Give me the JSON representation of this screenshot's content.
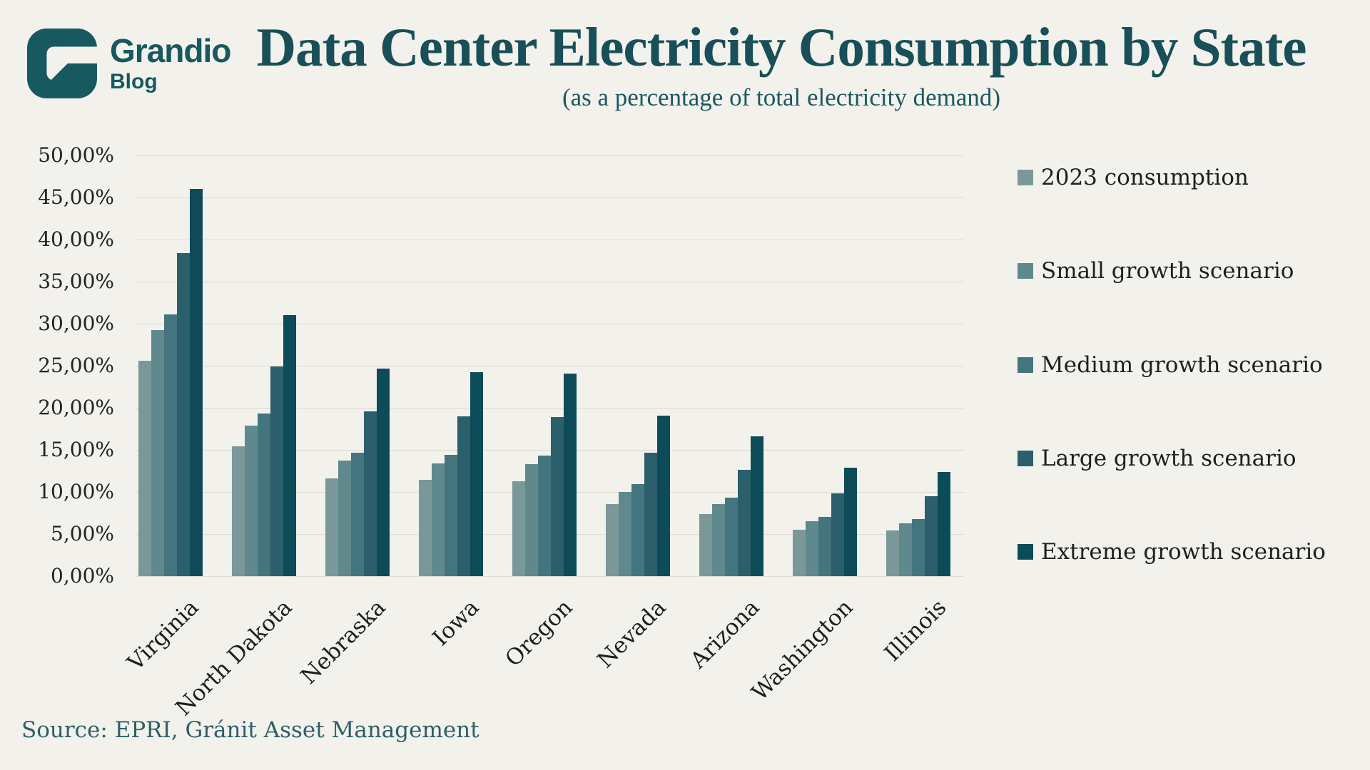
{
  "logo": {
    "name": "Grandio",
    "sub": "Blog",
    "color": "#16595f"
  },
  "header": {
    "title": "Data Center Electricity Consumption by State",
    "subtitle": "(as a percentage of total electricity demand)"
  },
  "source": {
    "text": "Source: EPRI, Gránit Asset Management"
  },
  "colors": {
    "background": "#f2f1ec",
    "gridline": "#dbdad3",
    "title_teal": "#184f58",
    "axis_text": "#222222"
  },
  "chart_data": {
    "type": "bar",
    "title": "Data Center Electricity Consumption by State",
    "subtitle": "(as a percentage of total electricity demand)",
    "categories": [
      "Virginia",
      "North Dakota",
      "Nebraska",
      "Iowa",
      "Oregon",
      "Nevada",
      "Arizona",
      "Washington",
      "Illinois"
    ],
    "series": [
      {
        "name": "2023 consumption",
        "color": "#7b9899",
        "values": [
          25.6,
          15.4,
          11.6,
          11.4,
          11.3,
          8.6,
          7.4,
          5.5,
          5.4
        ]
      },
      {
        "name": "Small growth scenario",
        "color": "#5f898c",
        "values": [
          29.2,
          17.9,
          13.7,
          13.4,
          13.3,
          10.0,
          8.6,
          6.5,
          6.3
        ]
      },
      {
        "name": "Medium growth scenario",
        "color": "#44757f",
        "values": [
          31.1,
          19.3,
          14.7,
          14.4,
          14.3,
          10.9,
          9.3,
          7.0,
          6.8
        ]
      },
      {
        "name": "Large growth scenario",
        "color": "#2b5f6b",
        "values": [
          38.4,
          24.9,
          19.6,
          19.0,
          18.9,
          14.7,
          12.6,
          9.8,
          9.5
        ]
      },
      {
        "name": "Extreme growth scenario",
        "color": "#0e4b58",
        "values": [
          46.0,
          31.0,
          24.7,
          24.2,
          24.1,
          19.1,
          16.6,
          12.9,
          12.4
        ]
      }
    ],
    "xlabel": "",
    "ylabel": "",
    "y_axis": {
      "min": 0,
      "max": 50,
      "step": 5,
      "tick_labels": [
        "50,00%",
        "45,00%",
        "40,00%",
        "35,00%",
        "30,00%",
        "25,00%",
        "20,00%",
        "15,00%",
        "10,00%",
        "5,00%",
        "0,00%"
      ]
    },
    "grid": true,
    "legend_position": "right"
  }
}
